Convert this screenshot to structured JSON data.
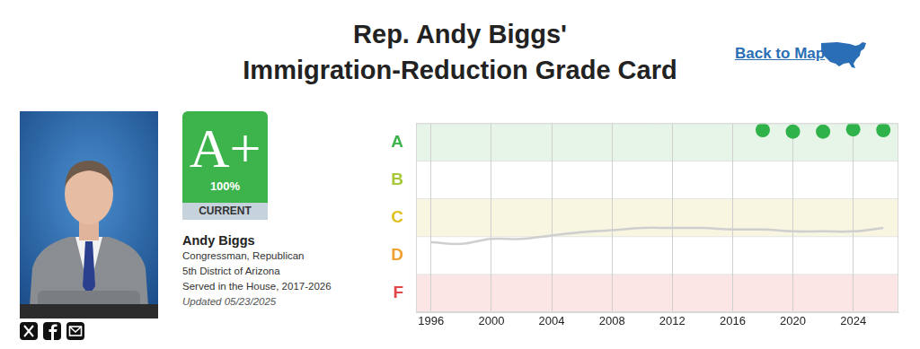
{
  "page": {
    "title_lines": [
      "Rep. Andy Biggs'",
      "Immigration-Reduction Grade Card"
    ],
    "back_link": "Back to Map",
    "card": {
      "grade": "A+",
      "percent": "100%",
      "status": "CURRENT",
      "name": "Andy Biggs",
      "details": [
        "Congressman, Republican",
        "5th District of Arizona",
        "Served in the House, 2017-2026"
      ],
      "updated": "Updated 05/23/2025"
    }
  },
  "chart_data": {
    "type": "line",
    "xlim": [
      1995,
      2027
    ],
    "xticks": [
      1996,
      2000,
      2004,
      2008,
      2012,
      2016,
      2020,
      2024
    ],
    "ylim": [
      0,
      5
    ],
    "yticks": [
      {
        "value": 4.5,
        "label": "A"
      },
      {
        "value": 3.5,
        "label": "B"
      },
      {
        "value": 2.5,
        "label": "C"
      },
      {
        "value": 1.5,
        "label": "D"
      },
      {
        "value": 0.5,
        "label": "F"
      }
    ],
    "grid": true,
    "series": [
      {
        "color": "#cfcfcf",
        "marker": "none",
        "line_style": "solid",
        "x": [
          1996,
          1998,
          2000,
          2002,
          2004,
          2006,
          2008,
          2010,
          2012,
          2014,
          2016,
          2018,
          2020,
          2022,
          2024,
          2026
        ],
        "values": [
          1.85,
          1.81,
          1.94,
          1.94,
          2.03,
          2.12,
          2.17,
          2.23,
          2.23,
          2.23,
          2.19,
          2.19,
          2.14,
          2.14,
          2.14,
          2.23
        ]
      },
      {
        "color": "#2fb24a",
        "marker": "circle",
        "line_style": "none",
        "x": [
          2018,
          2020,
          2022,
          2024,
          2026
        ],
        "values": [
          4.82,
          4.78,
          4.78,
          4.84,
          4.82
        ]
      }
    ]
  }
}
